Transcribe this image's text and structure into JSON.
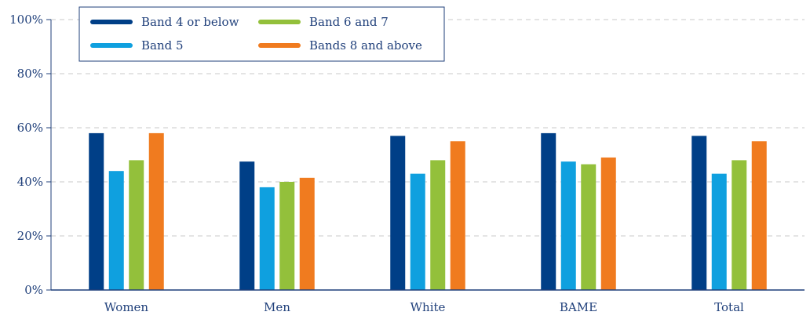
{
  "chart_data": {
    "type": "bar",
    "categories": [
      "Women",
      "Men",
      "White",
      "BAME",
      "Total"
    ],
    "series": [
      {
        "name": "Band 4 or below",
        "color": "#003f87",
        "values": [
          58,
          47.5,
          57,
          58,
          57
        ]
      },
      {
        "name": "Band 5",
        "color": "#0fa0df",
        "values": [
          44,
          38,
          43,
          47.5,
          43
        ]
      },
      {
        "name": "Band 6 and 7",
        "color": "#93c03b",
        "values": [
          48,
          40,
          48,
          46.5,
          48
        ]
      },
      {
        "name": "Bands 8 and above",
        "color": "#f07b1f",
        "values": [
          58,
          41.5,
          55,
          49,
          55
        ]
      }
    ],
    "y_ticks": [
      "0%",
      "20%",
      "40%",
      "60%",
      "80%",
      "100%"
    ],
    "ylim": [
      0,
      100
    ],
    "title": "",
    "xlabel": "",
    "ylabel": "",
    "grid": true,
    "legend_position": "top-left"
  },
  "colors": {
    "axis": "#1f3f7a",
    "grid": "#c8c8c8",
    "text": "#1f3f7a"
  }
}
